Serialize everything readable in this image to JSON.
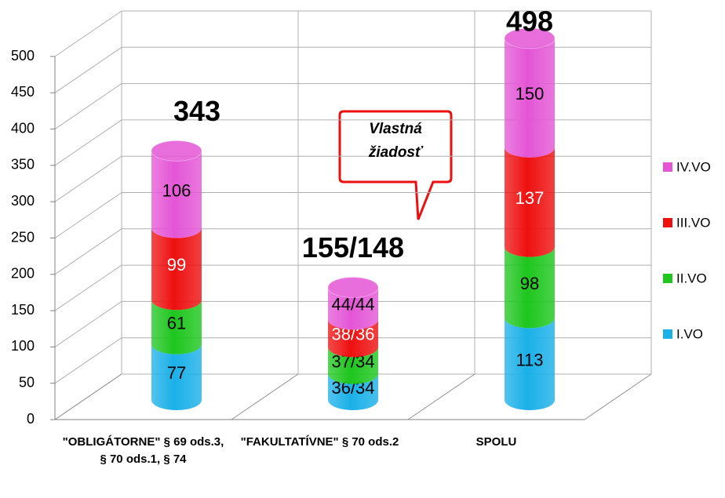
{
  "chart_data": {
    "type": "bar3d-cylinder-stacked",
    "categories": [
      "\"OBLIGÁTORNE\" § 69 ods.3, § 70 ods.1, § 74",
      "\"FAKULTATÍVNE\" § 70 ods.2",
      "SPOLU"
    ],
    "series": [
      {
        "name": "I.VO",
        "color": "#1ab0e8",
        "values": [
          77,
          36,
          113
        ],
        "value_labels": [
          "77",
          "36/34",
          "113"
        ]
      },
      {
        "name": "II.VO",
        "color": "#1ec61e",
        "values": [
          61,
          37,
          98
        ],
        "value_labels": [
          "61",
          "37/34",
          "98"
        ]
      },
      {
        "name": "III.VO",
        "color": "#ee1010",
        "values": [
          99,
          38,
          137
        ],
        "value_labels": [
          "99",
          "38/36",
          "137"
        ]
      },
      {
        "name": "IV.VO",
        "color": "#e455d6",
        "values": [
          106,
          44,
          150
        ],
        "value_labels": [
          "106",
          "44/44",
          "150"
        ]
      }
    ],
    "totals": [
      343,
      155,
      498
    ],
    "total_labels": [
      "343",
      "155/148",
      "498"
    ],
    "annotation": "Vlastná žiadosť",
    "ylim": [
      0,
      500
    ],
    "yticks": [
      0,
      50,
      100,
      150,
      200,
      250,
      300,
      350,
      400,
      450,
      500
    ],
    "grid": true,
    "stacked": true,
    "legend": "right"
  }
}
